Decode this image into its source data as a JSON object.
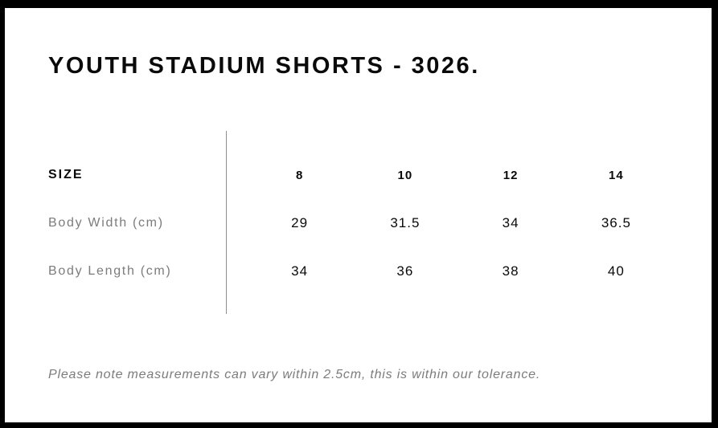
{
  "page": {
    "title": "YOUTH STADIUM SHORTS - 3026.",
    "note": "Please note measurements can vary within 2.5cm, this is within our tolerance."
  },
  "size_chart": {
    "header_label": "SIZE",
    "sizes": [
      "8",
      "10",
      "12",
      "14"
    ],
    "rows": [
      {
        "label": "Body Width (cm)",
        "values": [
          "29",
          "31.5",
          "34",
          "36.5"
        ]
      },
      {
        "label": "Body Length (cm)",
        "values": [
          "34",
          "36",
          "38",
          "40"
        ]
      }
    ]
  },
  "chart_data": {
    "type": "table",
    "title": "YOUTH STADIUM SHORTS - 3026.",
    "columns": [
      "SIZE",
      "8",
      "10",
      "12",
      "14"
    ],
    "rows": [
      [
        "Body Width (cm)",
        29,
        31.5,
        34,
        36.5
      ],
      [
        "Body Length (cm)",
        34,
        36,
        38,
        40
      ]
    ],
    "footnote": "Please note measurements can vary within 2.5cm, this is within our tolerance."
  },
  "colors": {
    "frame": "#000000",
    "background": "#ffffff",
    "text_primary": "#0a0a0a",
    "text_secondary": "#7c7c7c",
    "divider": "#8f8f8f"
  }
}
